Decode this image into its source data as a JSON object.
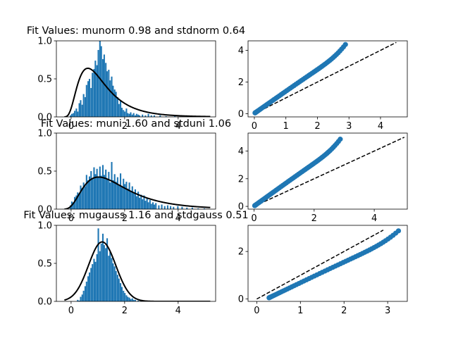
{
  "colors": {
    "bar": "#1f77b4",
    "curve": "#000000",
    "point": "#1f77b4",
    "ref_line": "#000000",
    "background": "#ffffff"
  },
  "chart_data": [
    {
      "type": "bar",
      "title": "Fit Values: munorm 0.98 and stdnorm 0.64",
      "xlim": [
        -0.55,
        5.4
      ],
      "ylim": [
        0,
        1.0
      ],
      "xticks": [
        0,
        2,
        4
      ],
      "yticks": [
        0.0,
        0.5,
        1.0
      ],
      "ytick_labels": [
        "0.0",
        "0.5",
        "1.0"
      ],
      "bin_width": 0.055,
      "bins": [
        [
          -0.05,
          0.02
        ],
        [
          0.0,
          0.04
        ],
        [
          0.06,
          0.05
        ],
        [
          0.11,
          0.08
        ],
        [
          0.17,
          0.11
        ],
        [
          0.22,
          0.07
        ],
        [
          0.28,
          0.18
        ],
        [
          0.33,
          0.22
        ],
        [
          0.39,
          0.16
        ],
        [
          0.44,
          0.3
        ],
        [
          0.5,
          0.26
        ],
        [
          0.55,
          0.42
        ],
        [
          0.61,
          0.47
        ],
        [
          0.66,
          0.5
        ],
        [
          0.72,
          0.38
        ],
        [
          0.77,
          0.58
        ],
        [
          0.83,
          0.63
        ],
        [
          0.88,
          0.74
        ],
        [
          0.94,
          0.68
        ],
        [
          0.99,
          0.88
        ],
        [
          1.05,
          1.0
        ],
        [
          1.1,
          0.93
        ],
        [
          1.16,
          0.76
        ],
        [
          1.21,
          0.82
        ],
        [
          1.27,
          0.71
        ],
        [
          1.32,
          0.6
        ],
        [
          1.38,
          0.62
        ],
        [
          1.43,
          0.48
        ],
        [
          1.49,
          0.53
        ],
        [
          1.54,
          0.41
        ],
        [
          1.6,
          0.36
        ],
        [
          1.65,
          0.33
        ],
        [
          1.71,
          0.26
        ],
        [
          1.76,
          0.17
        ],
        [
          1.82,
          0.21
        ],
        [
          1.87,
          0.12
        ],
        [
          1.93,
          0.09
        ],
        [
          1.98,
          0.07
        ],
        [
          2.04,
          0.11
        ],
        [
          2.09,
          0.05
        ],
        [
          2.15,
          0.04
        ],
        [
          2.2,
          0.06
        ],
        [
          2.26,
          0.03
        ],
        [
          2.31,
          0.05
        ],
        [
          2.37,
          0.02
        ],
        [
          2.42,
          0.04
        ],
        [
          2.48,
          0.03
        ],
        [
          2.53,
          0.02
        ],
        [
          2.64,
          0.03
        ],
        [
          2.75,
          0.02
        ],
        [
          2.86,
          0.04
        ],
        [
          2.97,
          0.02
        ],
        [
          3.08,
          0.02
        ],
        [
          3.3,
          0.02
        ],
        [
          3.52,
          0.01
        ],
        [
          3.85,
          0.01
        ],
        [
          4.3,
          0.01
        ],
        [
          4.72,
          0.01
        ]
      ],
      "fit": {
        "kind": "lognormal",
        "s": 0.55,
        "scale": 1.32,
        "loc": -0.35,
        "x_range": [
          -0.25,
          5.2
        ]
      }
    },
    {
      "type": "scatter",
      "xlim": [
        -0.2,
        4.85
      ],
      "ylim": [
        -0.2,
        4.6
      ],
      "xticks": [
        0,
        1,
        2,
        3,
        4
      ],
      "yticks": [
        0,
        2,
        4
      ],
      "ref_line": [
        [
          0,
          0
        ],
        [
          4.5,
          4.5
        ]
      ],
      "quantiles": {
        "xq": [
          0.02,
          2.92
        ],
        "yq": [
          0.05,
          4.45
        ]
      },
      "n_points": 60
    },
    {
      "type": "bar",
      "title": "Fit Values: muni 1.60 and stduni 1.06",
      "xlim": [
        -0.55,
        5.4
      ],
      "ylim": [
        0,
        1.0
      ],
      "xticks": [
        0,
        2,
        4
      ],
      "yticks": [
        0.0,
        0.5,
        1.0
      ],
      "ytick_labels": [
        "0.0",
        "0.5",
        "1.0"
      ],
      "bin_width": 0.055,
      "bins": [
        [
          -0.05,
          0.05
        ],
        [
          0.0,
          0.1
        ],
        [
          0.06,
          0.09
        ],
        [
          0.11,
          0.16
        ],
        [
          0.17,
          0.18
        ],
        [
          0.22,
          0.22
        ],
        [
          0.28,
          0.2
        ],
        [
          0.33,
          0.31
        ],
        [
          0.39,
          0.28
        ],
        [
          0.44,
          0.35
        ],
        [
          0.5,
          0.3
        ],
        [
          0.55,
          0.45
        ],
        [
          0.61,
          0.38
        ],
        [
          0.66,
          0.43
        ],
        [
          0.72,
          0.5
        ],
        [
          0.77,
          0.4
        ],
        [
          0.83,
          0.55
        ],
        [
          0.88,
          0.46
        ],
        [
          0.94,
          0.53
        ],
        [
          0.99,
          0.42
        ],
        [
          1.05,
          0.56
        ],
        [
          1.1,
          0.44
        ],
        [
          1.16,
          0.58
        ],
        [
          1.21,
          0.45
        ],
        [
          1.27,
          0.52
        ],
        [
          1.32,
          0.4
        ],
        [
          1.38,
          0.49
        ],
        [
          1.43,
          0.35
        ],
        [
          1.49,
          0.62
        ],
        [
          1.54,
          0.38
        ],
        [
          1.6,
          0.46
        ],
        [
          1.65,
          0.36
        ],
        [
          1.71,
          0.42
        ],
        [
          1.76,
          0.31
        ],
        [
          1.82,
          0.47
        ],
        [
          1.87,
          0.29
        ],
        [
          1.93,
          0.4
        ],
        [
          1.98,
          0.33
        ],
        [
          2.04,
          0.36
        ],
        [
          2.09,
          0.27
        ],
        [
          2.15,
          0.35
        ],
        [
          2.2,
          0.24
        ],
        [
          2.26,
          0.3
        ],
        [
          2.31,
          0.21
        ],
        [
          2.37,
          0.26
        ],
        [
          2.42,
          0.17
        ],
        [
          2.48,
          0.23
        ],
        [
          2.53,
          0.15
        ],
        [
          2.59,
          0.19
        ],
        [
          2.64,
          0.13
        ],
        [
          2.7,
          0.18
        ],
        [
          2.75,
          0.11
        ],
        [
          2.81,
          0.15
        ],
        [
          2.86,
          0.09
        ],
        [
          2.92,
          0.12
        ],
        [
          2.97,
          0.07
        ],
        [
          3.03,
          0.09
        ],
        [
          3.08,
          0.06
        ],
        [
          3.14,
          0.08
        ],
        [
          3.25,
          0.05
        ],
        [
          3.36,
          0.06
        ],
        [
          3.47,
          0.04
        ],
        [
          3.58,
          0.05
        ],
        [
          3.69,
          0.04
        ],
        [
          3.8,
          0.03
        ],
        [
          3.96,
          0.04
        ],
        [
          4.12,
          0.03
        ],
        [
          4.3,
          0.02
        ],
        [
          4.5,
          0.02
        ],
        [
          4.72,
          0.01
        ],
        [
          4.95,
          0.01
        ]
      ],
      "fit": {
        "kind": "lognormal",
        "s": 0.55,
        "scale": 2.0,
        "loc": -0.45,
        "x_range": [
          -0.25,
          5.2
        ]
      }
    },
    {
      "type": "scatter",
      "xlim": [
        -0.2,
        5.1
      ],
      "ylim": [
        -0.2,
        5.3
      ],
      "xticks": [
        0,
        2,
        4
      ],
      "yticks": [
        0,
        2,
        4
      ],
      "ref_line": [
        [
          0,
          0
        ],
        [
          5.0,
          5.0
        ]
      ],
      "quantiles": {
        "xq": [
          0.02,
          2.9
        ],
        "yq": [
          0.05,
          4.95
        ]
      },
      "n_points": 60
    },
    {
      "type": "bar",
      "title": "Fit Values: mugauss 1.16 and stdgauss 0.51",
      "xlim": [
        -0.55,
        5.4
      ],
      "ylim": [
        0,
        1.0
      ],
      "xticks": [
        0,
        2,
        4
      ],
      "yticks": [
        0.0,
        0.5,
        1.0
      ],
      "ytick_labels": [
        "0.0",
        "0.5",
        "1.0"
      ],
      "bin_width": 0.055,
      "bins": [
        [
          0.22,
          0.02
        ],
        [
          0.28,
          0.01
        ],
        [
          0.33,
          0.06
        ],
        [
          0.39,
          0.09
        ],
        [
          0.44,
          0.14
        ],
        [
          0.5,
          0.2
        ],
        [
          0.55,
          0.26
        ],
        [
          0.61,
          0.33
        ],
        [
          0.66,
          0.38
        ],
        [
          0.72,
          0.44
        ],
        [
          0.77,
          0.49
        ],
        [
          0.83,
          0.56
        ],
        [
          0.88,
          0.52
        ],
        [
          0.94,
          0.62
        ],
        [
          0.99,
          0.96
        ],
        [
          1.05,
          0.66
        ],
        [
          1.1,
          0.76
        ],
        [
          1.16,
          0.89
        ],
        [
          1.21,
          0.74
        ],
        [
          1.27,
          0.7
        ],
        [
          1.32,
          0.83
        ],
        [
          1.38,
          0.6
        ],
        [
          1.43,
          0.65
        ],
        [
          1.49,
          0.57
        ],
        [
          1.54,
          0.5
        ],
        [
          1.6,
          0.46
        ],
        [
          1.65,
          0.4
        ],
        [
          1.71,
          0.35
        ],
        [
          1.76,
          0.3
        ],
        [
          1.82,
          0.24
        ],
        [
          1.87,
          0.19
        ],
        [
          1.93,
          0.14
        ],
        [
          1.98,
          0.11
        ],
        [
          2.04,
          0.08
        ],
        [
          2.09,
          0.06
        ],
        [
          2.15,
          0.05
        ],
        [
          2.2,
          0.03
        ],
        [
          2.26,
          0.04
        ],
        [
          2.31,
          0.02
        ],
        [
          2.37,
          0.02
        ],
        [
          2.48,
          0.01
        ],
        [
          2.59,
          0.02
        ],
        [
          2.75,
          0.01
        ]
      ],
      "fit": {
        "kind": "normal",
        "mu": 1.16,
        "sigma": 0.51,
        "x_range": [
          -0.25,
          5.2
        ]
      }
    },
    {
      "type": "scatter",
      "xlim": [
        -0.2,
        3.45
      ],
      "ylim": [
        -0.1,
        3.1
      ],
      "xticks": [
        0,
        1,
        2,
        3
      ],
      "yticks": [
        0,
        2
      ],
      "ref_line": [
        [
          0,
          0
        ],
        [
          2.9,
          2.9
        ]
      ],
      "quantiles": {
        "xq": [
          0.28,
          3.28
        ],
        "yq": [
          0.05,
          2.92
        ]
      },
      "n_points": 60
    }
  ]
}
